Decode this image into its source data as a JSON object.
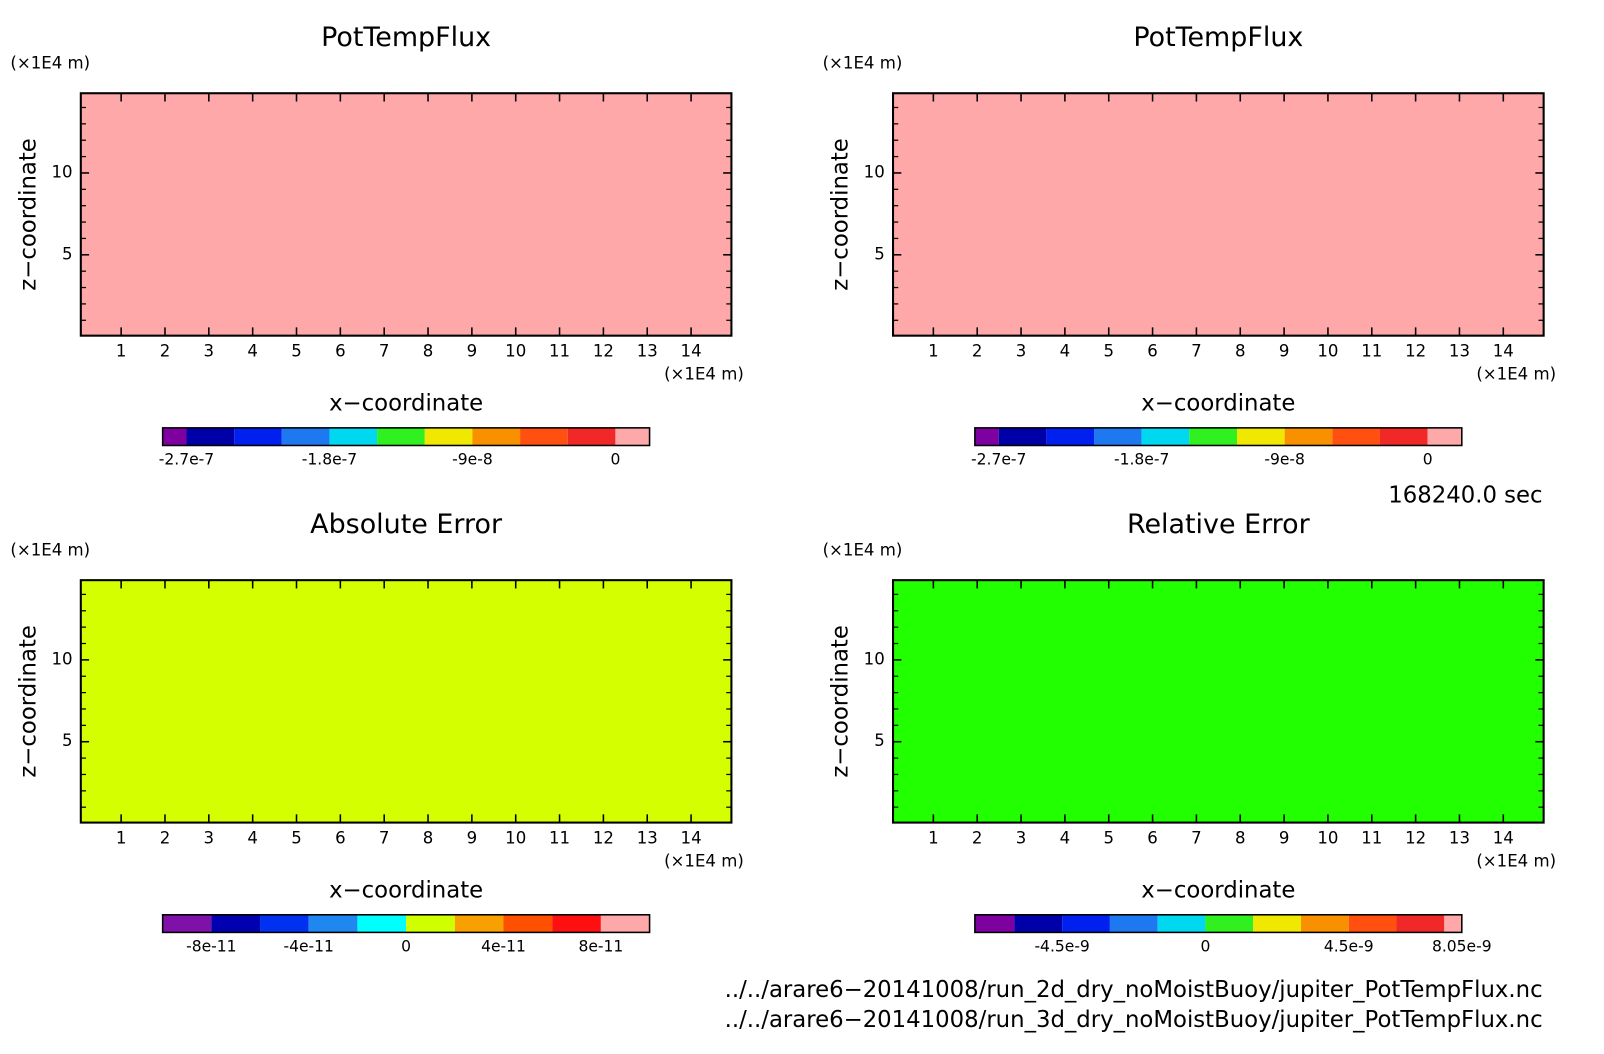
{
  "chart_data": [
    {
      "type": "contour",
      "title": "PotTempFlux",
      "x_label": "x−coordinate",
      "y_label": "z−coordinate",
      "x_unit": "(×1E4 m)",
      "y_unit": "(×1E4 m)",
      "xlim": [
        0.08,
        14.92
      ],
      "ylim": [
        0.06,
        14.87
      ],
      "xticks": [
        1,
        2,
        3,
        4,
        5,
        6,
        7,
        8,
        9,
        10,
        11,
        12,
        13,
        14
      ],
      "yticks": [
        5,
        10
      ],
      "yminor": [
        1,
        2,
        3,
        4,
        6,
        7,
        8,
        9,
        11,
        12,
        13,
        14
      ],
      "fill": "#ffa8aa",
      "colorbar": {
        "lim": [
          -2.85e-07,
          2.15e-08
        ],
        "levels": [
          -2.7e-07,
          -2.4e-07,
          -2.1e-07,
          -1.8e-07,
          -1.5e-07,
          -1.2e-07,
          -9e-08,
          -6e-08,
          -3e-08,
          0
        ],
        "colors": [
          "#7f00a0",
          "#0000a8",
          "#0020f0",
          "#1e78f0",
          "#00d8f0",
          "#30f020",
          "#f0e800",
          "#f89000",
          "#ff5010",
          "#f02828",
          "#ffa8aa"
        ],
        "ticks": [
          -2.7e-07,
          -1.8e-07,
          -9e-08,
          0
        ]
      }
    },
    {
      "type": "contour",
      "title": "PotTempFlux",
      "x_label": "x−coordinate",
      "y_label": "z−coordinate",
      "x_unit": "(×1E4 m)",
      "y_unit": "(×1E4 m)",
      "xlim": [
        0.08,
        14.92
      ],
      "ylim": [
        0.06,
        14.87
      ],
      "xticks": [
        1,
        2,
        3,
        4,
        5,
        6,
        7,
        8,
        9,
        10,
        11,
        12,
        13,
        14
      ],
      "yticks": [
        5,
        10
      ],
      "yminor": [
        1,
        2,
        3,
        4,
        6,
        7,
        8,
        9,
        11,
        12,
        13,
        14
      ],
      "fill": "#ffa8aa",
      "colorbar": {
        "lim": [
          -2.85e-07,
          2.15e-08
        ],
        "levels": [
          -2.7e-07,
          -2.4e-07,
          -2.1e-07,
          -1.8e-07,
          -1.5e-07,
          -1.2e-07,
          -9e-08,
          -6e-08,
          -3e-08,
          0
        ],
        "colors": [
          "#7f00a0",
          "#0000a8",
          "#0020f0",
          "#1e78f0",
          "#00d8f0",
          "#30f020",
          "#f0e800",
          "#f89000",
          "#ff5010",
          "#f02828",
          "#ffa8aa"
        ],
        "ticks": [
          -2.7e-07,
          -1.8e-07,
          -9e-08,
          0
        ]
      }
    },
    {
      "type": "contour",
      "title": "Absolute Error",
      "x_label": "x−coordinate",
      "y_label": "z−coordinate",
      "x_unit": "(×1E4 m)",
      "y_unit": "(×1E4 m)",
      "xlim": [
        0.08,
        14.92
      ],
      "ylim": [
        0.06,
        14.87
      ],
      "xticks": [
        1,
        2,
        3,
        4,
        5,
        6,
        7,
        8,
        9,
        10,
        11,
        12,
        13,
        14
      ],
      "yticks": [
        5,
        10
      ],
      "yminor": [
        1,
        2,
        3,
        4,
        6,
        7,
        8,
        9,
        11,
        12,
        13,
        14
      ],
      "fill": "#d4ff00",
      "colorbar": {
        "lim": [
          -1e-10,
          1e-10
        ],
        "levels": [
          -8e-11,
          -6e-11,
          -4e-11,
          -2e-11,
          0,
          2e-11,
          4e-11,
          6e-11,
          8e-11
        ],
        "colors": [
          "#7f10a8",
          "#0000b0",
          "#0030f0",
          "#1e88f0",
          "#00ffff",
          "#d0ff00",
          "#f8a000",
          "#ff5000",
          "#ff1010",
          "#ffa8aa"
        ],
        "ticks": [
          -8e-11,
          -4e-11,
          0,
          4e-11,
          8e-11
        ]
      }
    },
    {
      "type": "contour",
      "title": "Relative Error",
      "x_label": "x−coordinate",
      "y_label": "z−coordinate",
      "x_unit": "(×1E4 m)",
      "y_unit": "(×1E4 m)",
      "xlim": [
        0.08,
        14.92
      ],
      "ylim": [
        0.06,
        14.87
      ],
      "xticks": [
        1,
        2,
        3,
        4,
        5,
        6,
        7,
        8,
        9,
        10,
        11,
        12,
        13,
        14
      ],
      "yticks": [
        5,
        10
      ],
      "yminor": [
        1,
        2,
        3,
        4,
        6,
        7,
        8,
        9,
        11,
        12,
        13,
        14
      ],
      "fill": "#22ff00",
      "colorbar": {
        "lim": [
          -7.24e-09,
          8.05e-09
        ],
        "levels": [
          -6e-09,
          -4.5e-09,
          -3e-09,
          -1.5e-09,
          0,
          1.5e-09,
          3e-09,
          4.5e-09,
          6e-09,
          7.5e-09
        ],
        "colors": [
          "#7f00a0",
          "#0000a8",
          "#0020f0",
          "#1e78f0",
          "#00d8f0",
          "#30f020",
          "#f0e800",
          "#f89000",
          "#ff5010",
          "#f02828",
          "#ffa8aa"
        ],
        "ticks": [
          -4.5e-09,
          0,
          4.5e-09,
          8.05e-09
        ]
      }
    }
  ],
  "annotations": {
    "time": "168240.0 sec",
    "files": [
      "../../arare6−20141008/run_2d_dry_noMoistBuoy/jupiter_PotTempFlux.nc",
      "../../arare6−20141008/run_3d_dry_noMoistBuoy/jupiter_PotTempFlux.nc"
    ]
  }
}
